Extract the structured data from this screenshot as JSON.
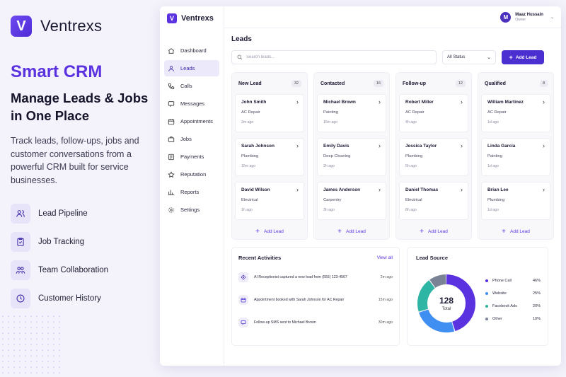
{
  "hero": {
    "brand": "Ventrexs",
    "logo_letter": "V",
    "kicker": "Smart CRM",
    "title": "Manage Leads & Jobs in One Place",
    "description": "Track leads, follow-ups, jobs and customer conversations from a powerful CRM built for service businesses.",
    "features": [
      {
        "label": "Lead Pipeline",
        "icon": "users-icon"
      },
      {
        "label": "Job Tracking",
        "icon": "clipboard-check-icon"
      },
      {
        "label": "Team Collaboration",
        "icon": "team-icon"
      },
      {
        "label": "Customer History",
        "icon": "clock-icon"
      }
    ]
  },
  "app": {
    "brand": "Ventrexs",
    "logo_letter": "V",
    "nav": [
      {
        "label": "Dashboard",
        "icon": "home-icon"
      },
      {
        "label": "Leads",
        "icon": "user-icon",
        "active": true
      },
      {
        "label": "Calls",
        "icon": "phone-icon"
      },
      {
        "label": "Messages",
        "icon": "message-icon"
      },
      {
        "label": "Appointments",
        "icon": "calendar-icon"
      },
      {
        "label": "Jobs",
        "icon": "briefcase-icon"
      },
      {
        "label": "Payments",
        "icon": "invoice-icon"
      },
      {
        "label": "Reputation",
        "icon": "star-icon"
      },
      {
        "label": "Reports",
        "icon": "bar-chart-icon"
      },
      {
        "label": "Settings",
        "icon": "gear-icon"
      }
    ],
    "user": {
      "initial": "M",
      "name": "Maaz Hussain",
      "role": "Owner"
    },
    "page_title": "Leads",
    "search_placeholder": "Search leads...",
    "status_filter": "All Status",
    "add_lead_label": "Add Lead",
    "columns": [
      {
        "title": "New Lead",
        "count": "32",
        "cards": [
          {
            "name": "John Smith",
            "service": "AC Repair",
            "time": "2m ago"
          },
          {
            "name": "Sarah Johnson",
            "service": "Plumbing",
            "time": "15m ago"
          },
          {
            "name": "David Wilson",
            "service": "Electrical",
            "time": "1h ago"
          }
        ],
        "add_label": "Add Lead"
      },
      {
        "title": "Contacted",
        "count": "16",
        "cards": [
          {
            "name": "Michael Brown",
            "service": "Painting",
            "time": "15m ago"
          },
          {
            "name": "Emily Davis",
            "service": "Deep Cleaning",
            "time": "2h ago"
          },
          {
            "name": "James Anderson",
            "service": "Carpentry",
            "time": "3h ago"
          }
        ],
        "add_label": "Add Lead"
      },
      {
        "title": "Follow-up",
        "count": "12",
        "cards": [
          {
            "name": "Robert Miller",
            "service": "AC Repair",
            "time": "4h ago"
          },
          {
            "name": "Jessica Taylor",
            "service": "Plumbing",
            "time": "5h ago"
          },
          {
            "name": "Daniel Thomas",
            "service": "Electrical",
            "time": "8h ago"
          }
        ],
        "add_label": "Add Lead"
      },
      {
        "title": "Qualified",
        "count": "8",
        "cards": [
          {
            "name": "William Martinez",
            "service": "AC Repair",
            "time": "1d ago"
          },
          {
            "name": "Linda Garcia",
            "service": "Painting",
            "time": "1d ago"
          },
          {
            "name": "Brian Lee",
            "service": "Plumbing",
            "time": "1d ago"
          }
        ],
        "add_label": "Add Lead"
      }
    ],
    "activities": {
      "title": "Recent Activities",
      "view_all": "View all",
      "items": [
        {
          "text": "AI Receptionist captured a new lead from (555) 123-4567",
          "time": "2m ago",
          "icon": "bot-icon"
        },
        {
          "text": "Appointment booked with Sarah Johnson for AC Repair",
          "time": "15m ago",
          "icon": "calendar-icon"
        },
        {
          "text": "Follow-up SMS sent to Michael Brown",
          "time": "30m ago",
          "icon": "message-icon"
        }
      ]
    },
    "lead_source": {
      "title": "Lead Source",
      "total": "128",
      "total_label": "Total"
    }
  },
  "chart_data": {
    "type": "pie",
    "title": "Lead Source",
    "categories": [
      "Phone Call",
      "Website",
      "Facebook Ads",
      "Other"
    ],
    "values": [
      46,
      25,
      20,
      10
    ],
    "labels": [
      "46%",
      "25%",
      "20%",
      "10%"
    ],
    "colors": [
      "#5a32e0",
      "#3f8ef2",
      "#2fb5a4",
      "#7a8296"
    ]
  }
}
